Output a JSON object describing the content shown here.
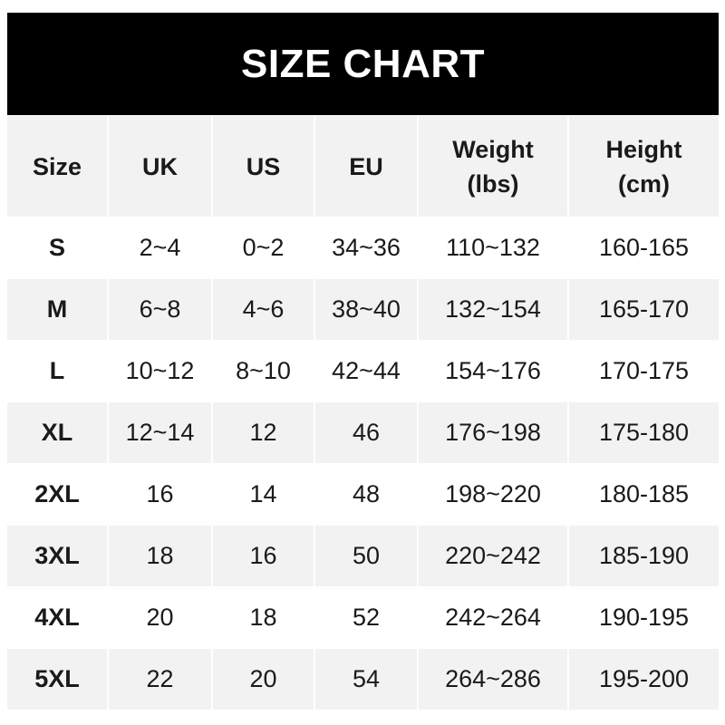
{
  "title": "SIZE CHART",
  "headers": [
    "Size",
    "UK",
    "US",
    "EU",
    "Weight\n(lbs)",
    "Height\n(cm)"
  ],
  "rows": [
    [
      "S",
      "2~4",
      "0~2",
      "34~36",
      "110~132",
      "160-165"
    ],
    [
      "M",
      "6~8",
      "4~6",
      "38~40",
      "132~154",
      "165-170"
    ],
    [
      "L",
      "10~12",
      "8~10",
      "42~44",
      "154~176",
      "170-175"
    ],
    [
      "XL",
      "12~14",
      "12",
      "46",
      "176~198",
      "175-180"
    ],
    [
      "2XL",
      "16",
      "14",
      "48",
      "198~220",
      "180-185"
    ],
    [
      "3XL",
      "18",
      "16",
      "50",
      "220~242",
      "185-190"
    ],
    [
      "4XL",
      "20",
      "18",
      "52",
      "242~264",
      "190-195"
    ],
    [
      "5XL",
      "22",
      "20",
      "54",
      "264~286",
      "195-200"
    ]
  ],
  "colors": {
    "title_bg": "#000000",
    "title_text": "#ffffff",
    "stripe": "#f2f2f2"
  }
}
